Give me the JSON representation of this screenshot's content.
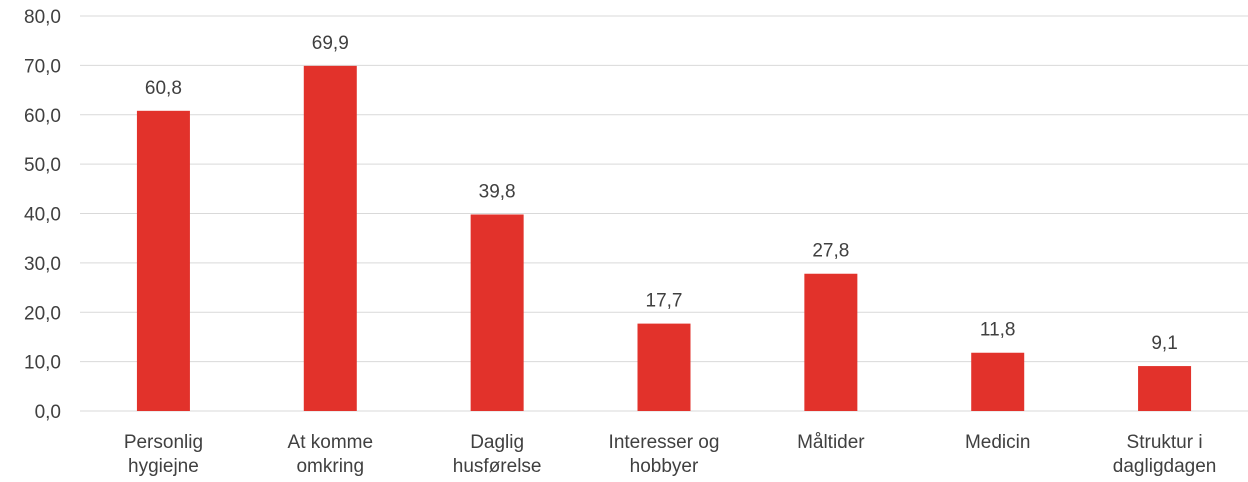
{
  "chart_data": {
    "type": "bar",
    "categories": [
      [
        "Personlig",
        "hygiejne"
      ],
      [
        "At komme",
        "omkring"
      ],
      [
        "Daglig",
        "husførelse"
      ],
      [
        "Interesser og",
        "hobbyer"
      ],
      [
        "Måltider"
      ],
      [
        "Medicin"
      ],
      [
        "Struktur i",
        "dagligdagen"
      ]
    ],
    "values": [
      60.8,
      69.9,
      39.8,
      17.7,
      27.8,
      11.8,
      9.1
    ],
    "value_labels": [
      "60,8",
      "69,9",
      "39,8",
      "17,7",
      "27,8",
      "11,8",
      "9,1"
    ],
    "ylim": [
      0,
      80
    ],
    "yticks": [
      "0,0",
      "10,0",
      "20,0",
      "30,0",
      "40,0",
      "50,0",
      "60,0",
      "70,0",
      "80,0"
    ],
    "grid": true,
    "colors": {
      "bar": "#e2322b",
      "grid": "#d9d9d9",
      "text": "#404040"
    }
  }
}
